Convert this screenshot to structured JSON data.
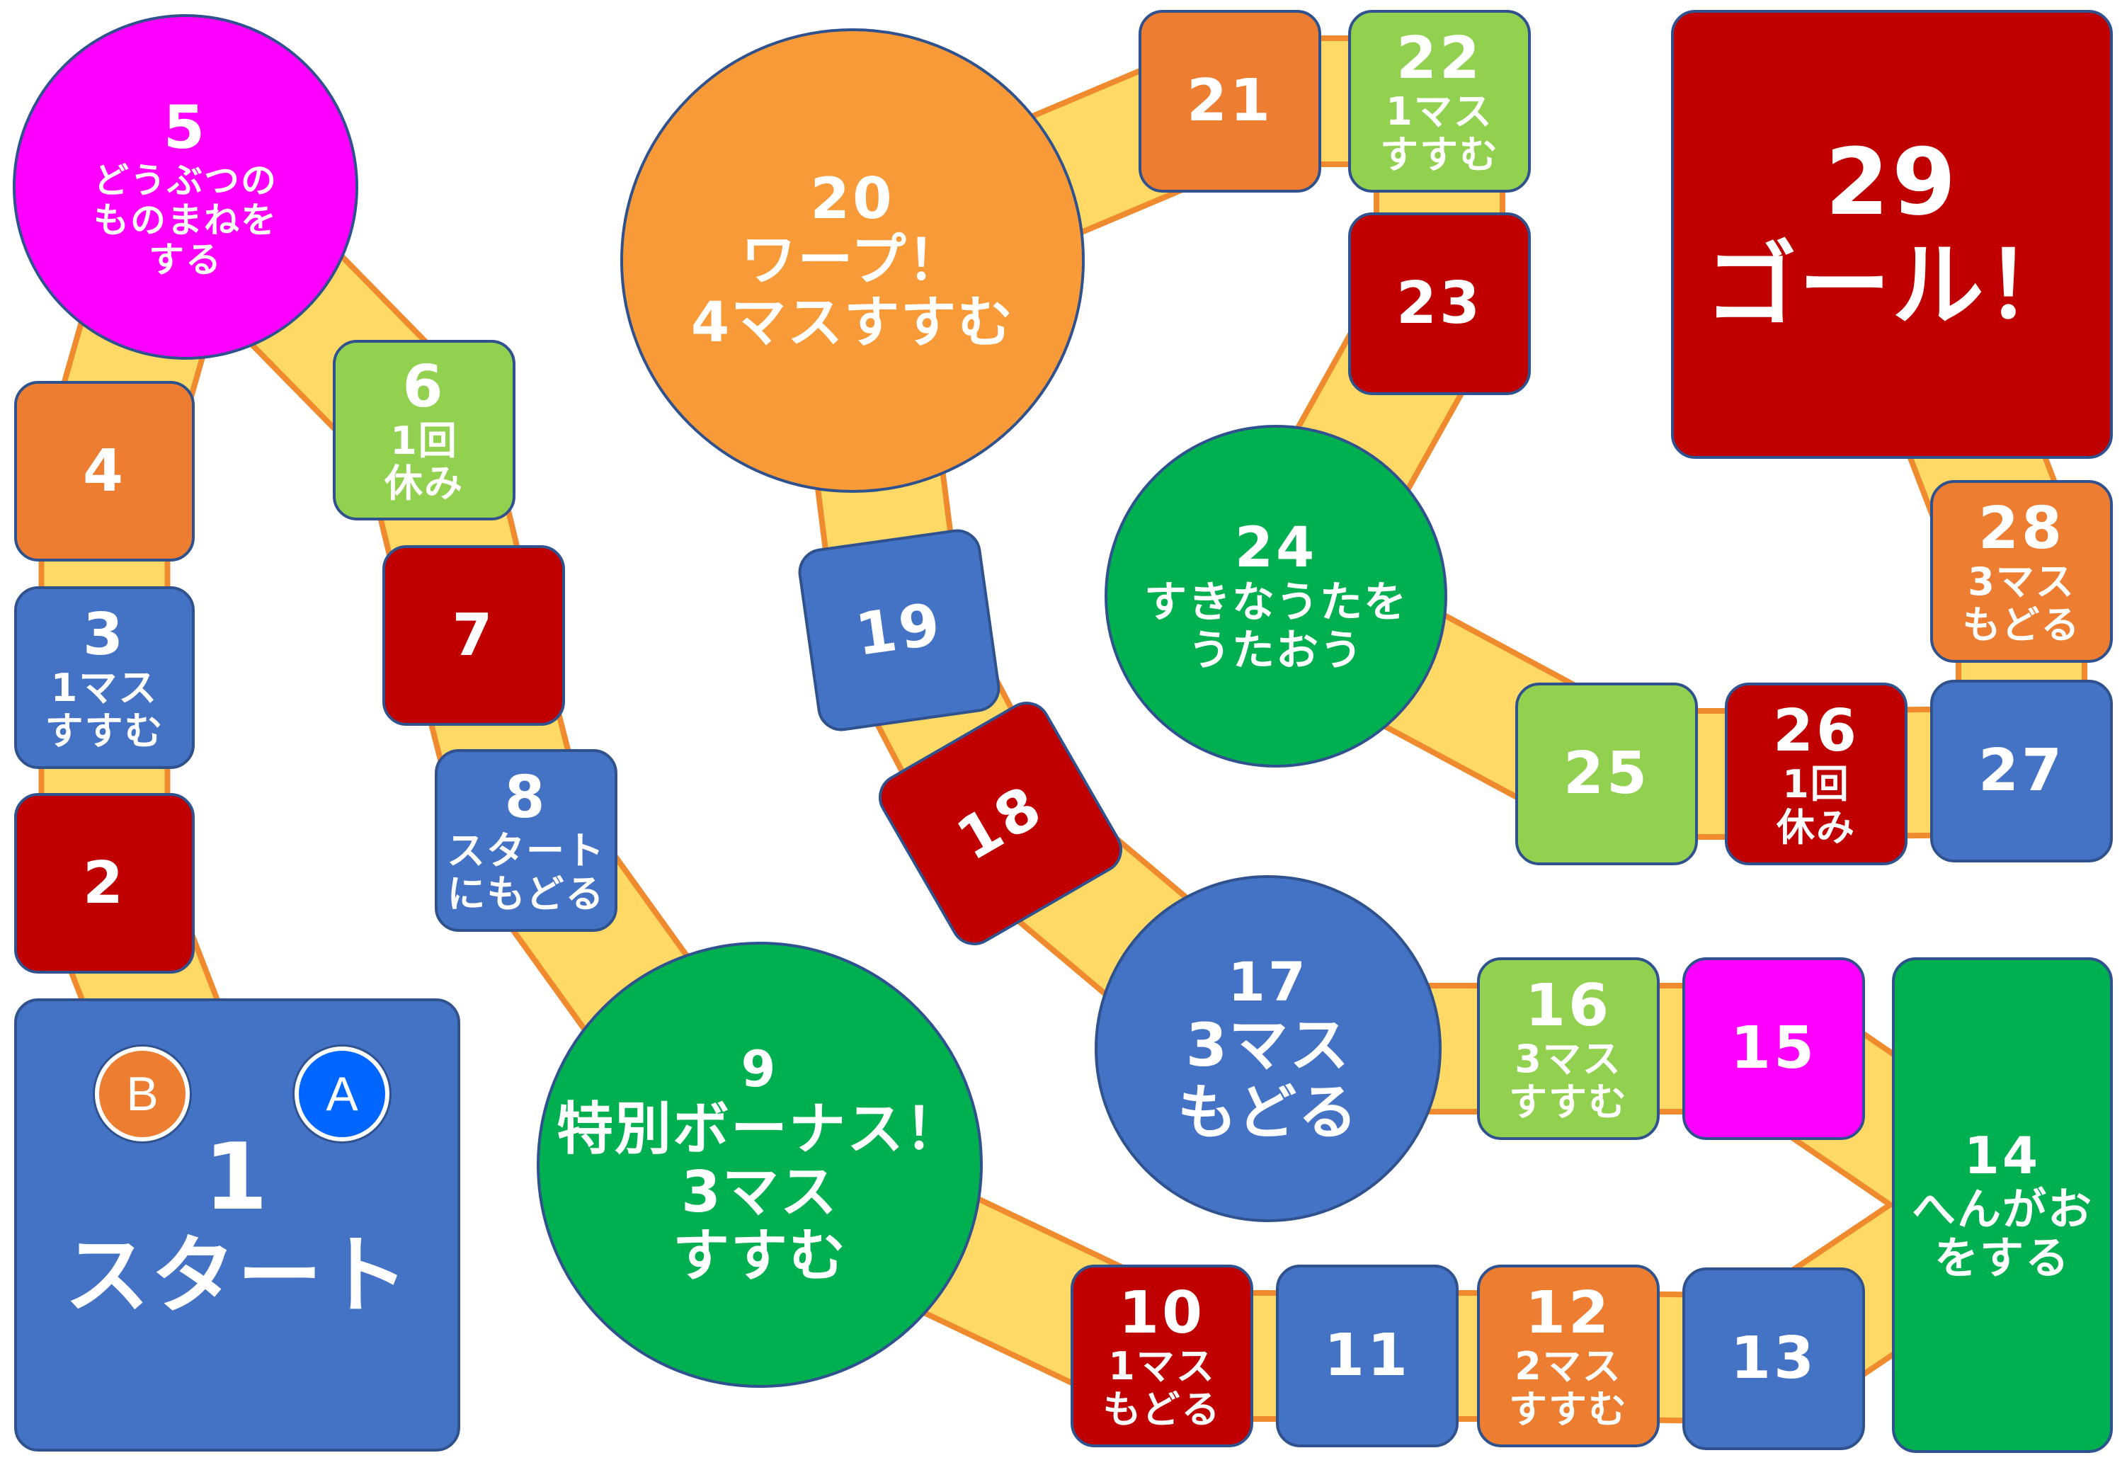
{
  "colors": {
    "blue": "#4472c4",
    "red": "#c00000",
    "green": "#00b050",
    "light_green": "#92d050",
    "orange": "#ed7d31",
    "light_orange": "#f79a37",
    "magenta": "#ff00ff",
    "path_fill": "#ffd966",
    "path_edge": "#f08a2e"
  },
  "squares": [
    {
      "num": "1",
      "label": "スタート"
    },
    {
      "num": "2",
      "label": ""
    },
    {
      "num": "3",
      "label": "1マス\nすすむ"
    },
    {
      "num": "4",
      "label": ""
    },
    {
      "num": "5",
      "label": "どうぶつの\nものまねを\nする"
    },
    {
      "num": "6",
      "label": "1回\n休み"
    },
    {
      "num": "7",
      "label": ""
    },
    {
      "num": "8",
      "label": "スタート\nにもどる"
    },
    {
      "num": "9",
      "label": "特別ボーナス！\n3マス\nすすむ"
    },
    {
      "num": "10",
      "label": "1マス\nもどる"
    },
    {
      "num": "11",
      "label": ""
    },
    {
      "num": "12",
      "label": "2マス\nすすむ"
    },
    {
      "num": "13",
      "label": ""
    },
    {
      "num": "14",
      "label": "へんがお\nをする"
    },
    {
      "num": "15",
      "label": ""
    },
    {
      "num": "16",
      "label": "3マス\nすすむ"
    },
    {
      "num": "17",
      "label": "3マス\nもどる"
    },
    {
      "num": "18",
      "label": ""
    },
    {
      "num": "19",
      "label": ""
    },
    {
      "num": "20",
      "label": "ワープ！\n4マスすすむ"
    },
    {
      "num": "21",
      "label": ""
    },
    {
      "num": "22",
      "label": "1マス\nすすむ"
    },
    {
      "num": "23",
      "label": ""
    },
    {
      "num": "24",
      "label": "すきなうたを\nうたおう"
    },
    {
      "num": "25",
      "label": ""
    },
    {
      "num": "26",
      "label": "1回\n休み"
    },
    {
      "num": "27",
      "label": ""
    },
    {
      "num": "28",
      "label": "3マス\nもどる"
    },
    {
      "num": "29",
      "label": "ゴール！"
    }
  ],
  "pieces": [
    {
      "label": "B",
      "color": "#ed7d31"
    },
    {
      "label": "A",
      "color": "#0066ff"
    }
  ]
}
